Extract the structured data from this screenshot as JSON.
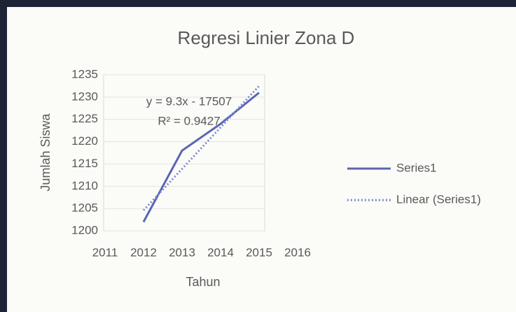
{
  "chart_data": {
    "type": "line",
    "title": "Regresi Linier Zona D",
    "x_label": "Tahun",
    "y_label": "Jumlah Siswa",
    "x": [
      2012,
      2013,
      2014,
      2015
    ],
    "series": [
      {
        "name": "Series1",
        "color": "#5a66b4",
        "style": "solid",
        "values": [
          1202,
          1218,
          1224,
          1231
        ]
      },
      {
        "name": "Linear (Series1)",
        "color": "#7b8bd0",
        "style": "dotted",
        "values": [
          1204.6,
          1213.9,
          1223.2,
          1232.5
        ]
      }
    ],
    "annotations": [
      "y = 9.3x - 17507",
      "R² = 0.9427"
    ],
    "xlim": [
      2011,
      2016
    ],
    "xticks": [
      2011,
      2012,
      2013,
      2014,
      2015,
      2016
    ],
    "ylim": [
      1200,
      1235
    ],
    "yticks": [
      1200,
      1205,
      1210,
      1215,
      1220,
      1225,
      1230,
      1235
    ],
    "grid": true,
    "legend": "right"
  }
}
